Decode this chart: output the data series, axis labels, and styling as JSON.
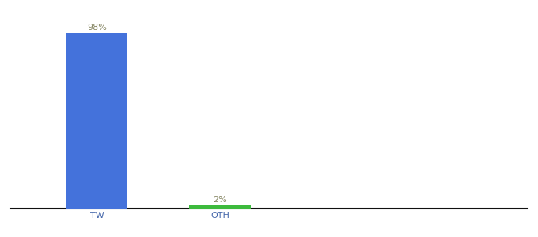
{
  "categories": [
    "TW",
    "OTH"
  ],
  "values": [
    98,
    2
  ],
  "bar_colors": [
    "#4472db",
    "#3dba3d"
  ],
  "label_color": "#888866",
  "ylim": [
    0,
    110
  ],
  "bar_width": 0.5,
  "x_positions": [
    1,
    2
  ],
  "xlim": [
    0.3,
    4.5
  ],
  "background_color": "#ffffff",
  "label_fontsize": 8,
  "tick_fontsize": 8,
  "axis_line_color": "#111111"
}
